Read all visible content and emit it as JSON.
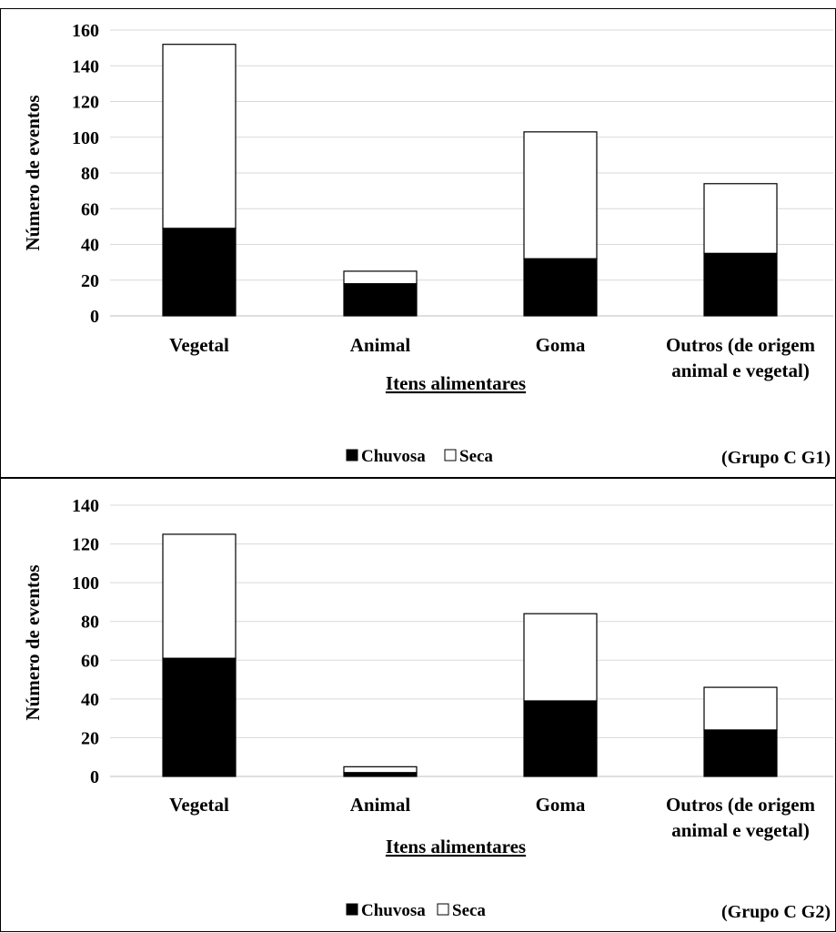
{
  "chart_data": [
    {
      "type": "bar",
      "stacked": true,
      "categories": [
        [
          "Vegetal"
        ],
        [
          "Animal"
        ],
        [
          "Goma"
        ],
        [
          "Outros  (de origem",
          "animal e vegetal)"
        ]
      ],
      "series": [
        {
          "name": "Chuvosa",
          "values": [
            49,
            18,
            32,
            35
          ],
          "color": "#000000"
        },
        {
          "name": "Seca",
          "values": [
            103,
            7,
            71,
            39
          ],
          "color": "#ffffff"
        }
      ],
      "xlabel": "Itens alimentares",
      "ylabel": "Número de eventos",
      "ylim": [
        0,
        160
      ],
      "yticks": [
        "0",
        "20",
        "40",
        "60",
        "80",
        "100",
        "120",
        "140",
        "160"
      ],
      "grid": true,
      "legend": "bottom-center",
      "group_label": "(Grupo C G1)"
    },
    {
      "type": "bar",
      "stacked": true,
      "categories": [
        [
          "Vegetal"
        ],
        [
          "Animal"
        ],
        [
          "Goma"
        ],
        [
          "Outros (de origem",
          "animal e vegetal)"
        ]
      ],
      "series": [
        {
          "name": "Chuvosa",
          "values": [
            61,
            2,
            39,
            24
          ],
          "color": "#000000"
        },
        {
          "name": "Seca",
          "values": [
            64,
            3,
            45,
            22
          ],
          "color": "#ffffff"
        }
      ],
      "xlabel": "Itens alimentares",
      "ylabel": "Número de eventos",
      "ylim": [
        0,
        140
      ],
      "yticks": [
        "0",
        "20",
        "40",
        "60",
        "80",
        "100",
        "120",
        "140"
      ],
      "grid": true,
      "legend": "bottom-center",
      "group_label": "(Grupo C G2)"
    }
  ]
}
